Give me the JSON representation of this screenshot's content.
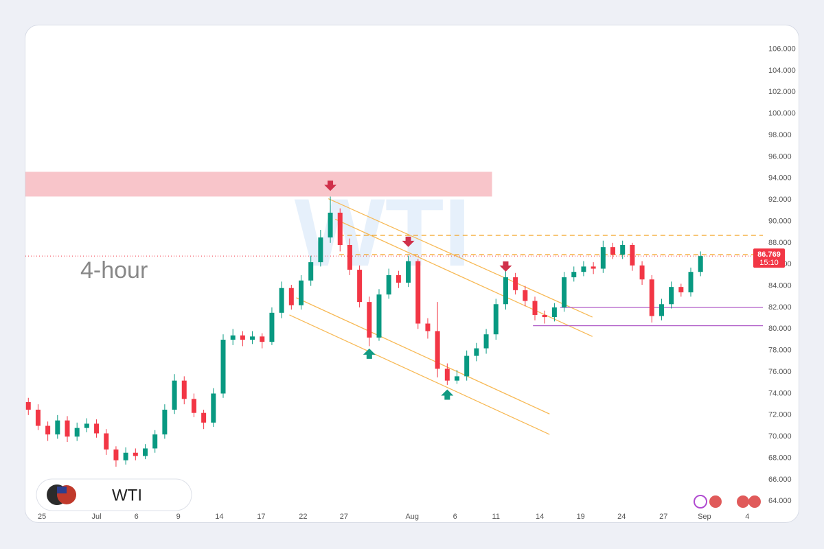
{
  "chart_data": {
    "type": "candlestick",
    "symbol": "WTI",
    "timeframe": "4-hour",
    "countdown": "15:10",
    "up_color": "#089981",
    "down_color": "#f23645",
    "xlim": [
      -0.3,
      75.4
    ],
    "ylim": [
      63,
      108.2
    ],
    "yticks": [
      {
        "value": 64,
        "label": "64.000"
      },
      {
        "value": 66,
        "label": "66.000"
      },
      {
        "value": 68,
        "label": "68.000"
      },
      {
        "value": 70,
        "label": "70.000"
      },
      {
        "value": 72,
        "label": "72.000"
      },
      {
        "value": 74,
        "label": "74.000"
      },
      {
        "value": 76,
        "label": "76.000"
      },
      {
        "value": 78,
        "label": "78.000"
      },
      {
        "value": 80,
        "label": "80.000"
      },
      {
        "value": 82,
        "label": "82.000"
      },
      {
        "value": 84,
        "label": "84.000"
      },
      {
        "value": 86,
        "label": "86.000"
      },
      {
        "value": 88,
        "label": "88.000"
      },
      {
        "value": 90,
        "label": "90.000"
      },
      {
        "value": 92,
        "label": "92.000"
      },
      {
        "value": 94,
        "label": "94.000"
      },
      {
        "value": 96,
        "label": "96.000"
      },
      {
        "value": 98,
        "label": "98.000"
      },
      {
        "value": 100,
        "label": "100.000"
      },
      {
        "value": 102,
        "label": "102.000"
      },
      {
        "value": 104,
        "label": "104.000"
      },
      {
        "value": 106,
        "label": "106.000"
      }
    ],
    "xticks": [
      {
        "value": 1.4,
        "label": "25"
      },
      {
        "value": 7.0,
        "label": "Jul"
      },
      {
        "value": 11.1,
        "label": "6"
      },
      {
        "value": 15.4,
        "label": "9"
      },
      {
        "value": 19.6,
        "label": "14"
      },
      {
        "value": 23.9,
        "label": "17"
      },
      {
        "value": 28.2,
        "label": "22"
      },
      {
        "value": 32.4,
        "label": "27"
      },
      {
        "value": 39.4,
        "label": "Aug"
      },
      {
        "value": 43.8,
        "label": "6"
      },
      {
        "value": 48.0,
        "label": "11"
      },
      {
        "value": 52.5,
        "label": "14"
      },
      {
        "value": 56.7,
        "label": "19"
      },
      {
        "value": 60.9,
        "label": "24"
      },
      {
        "value": 65.2,
        "label": "27"
      },
      {
        "value": 69.4,
        "label": "Sep"
      },
      {
        "value": 73.8,
        "label": "4"
      }
    ],
    "open": [
      73.2,
      72.5,
      71.0,
      70.2,
      71.5,
      70.0,
      70.8,
      71.2,
      70.3,
      68.8,
      67.8,
      68.5,
      68.2,
      68.9,
      70.2,
      72.5,
      75.2,
      73.5,
      72.2,
      71.3,
      74.0,
      79.0,
      79.4,
      79.0,
      79.3,
      78.8,
      81.5,
      83.8,
      82.2,
      84.5,
      86.2,
      88.5,
      90.8,
      87.8,
      85.5,
      82.5,
      79.2,
      83.2,
      85.0,
      84.3,
      86.3,
      80.5,
      79.8,
      76.3,
      75.2,
      75.6,
      77.5,
      78.2,
      79.5,
      82.3,
      84.8,
      83.6,
      82.6,
      81.3,
      81.1,
      82.0,
      84.8,
      85.3,
      85.8,
      85.6,
      87.6,
      86.9,
      87.8,
      85.9,
      84.6,
      81.2,
      82.3,
      83.9,
      83.4,
      85.3
    ],
    "high": [
      73.6,
      73.0,
      71.4,
      72.0,
      71.9,
      71.3,
      71.7,
      71.6,
      70.7,
      69.1,
      69.0,
      68.9,
      69.3,
      70.6,
      73.0,
      75.8,
      75.6,
      74.0,
      72.5,
      74.5,
      79.5,
      80.0,
      79.8,
      79.8,
      79.6,
      82.0,
      84.4,
      84.1,
      85.0,
      86.8,
      89.2,
      92.3,
      91.2,
      88.4,
      85.9,
      83.0,
      83.7,
      85.6,
      85.4,
      86.8,
      86.5,
      81.0,
      82.5,
      76.8,
      76.2,
      78.0,
      78.7,
      80.0,
      82.8,
      85.4,
      85.2,
      84.0,
      83.0,
      81.7,
      82.4,
      85.3,
      85.8,
      86.3,
      86.2,
      88.2,
      88.0,
      88.2,
      88.0,
      86.3,
      85.0,
      82.8,
      84.4,
      84.2,
      85.7,
      87.2
    ],
    "low": [
      72.0,
      70.6,
      69.6,
      69.8,
      69.5,
      69.6,
      70.4,
      69.9,
      68.3,
      67.2,
      67.4,
      67.8,
      67.9,
      68.5,
      69.8,
      72.1,
      73.0,
      71.8,
      70.7,
      70.9,
      73.6,
      78.5,
      78.4,
      78.6,
      78.2,
      78.5,
      81.0,
      81.8,
      81.8,
      84.0,
      85.8,
      88.0,
      87.2,
      85.0,
      82.0,
      78.4,
      78.9,
      82.8,
      83.8,
      83.9,
      80.0,
      79.1,
      75.5,
      74.8,
      74.9,
      75.2,
      77.0,
      77.7,
      79.0,
      81.8,
      83.2,
      82.1,
      80.8,
      80.5,
      80.7,
      81.6,
      84.4,
      84.9,
      85.1,
      85.2,
      86.5,
      86.5,
      85.4,
      84.1,
      80.6,
      80.8,
      81.9,
      83.0,
      83.0,
      84.9
    ],
    "close": [
      72.5,
      71.0,
      70.2,
      71.5,
      70.0,
      70.8,
      71.2,
      70.3,
      68.8,
      67.8,
      68.5,
      68.2,
      68.9,
      70.2,
      72.5,
      75.2,
      73.5,
      72.2,
      71.3,
      74.0,
      79.0,
      79.4,
      79.0,
      79.3,
      78.8,
      81.5,
      83.8,
      82.2,
      84.5,
      86.2,
      88.5,
      90.8,
      87.8,
      85.5,
      82.5,
      79.2,
      83.2,
      85.0,
      84.3,
      86.3,
      80.5,
      79.8,
      76.3,
      75.2,
      75.6,
      77.5,
      78.2,
      79.5,
      82.3,
      84.8,
      83.6,
      82.6,
      81.3,
      81.1,
      82.0,
      84.8,
      85.3,
      85.8,
      85.6,
      87.6,
      86.9,
      87.8,
      85.9,
      84.6,
      81.2,
      82.3,
      83.9,
      83.4,
      85.3,
      86.769
    ],
    "zone": {
      "x_end": 47.6,
      "range": [
        92.3,
        94.6
      ],
      "color": "#f8c5ca"
    },
    "trendlines": {
      "color": "#f7b955",
      "lines": [
        [
          [
            30.8,
            92.1
          ],
          [
            57.9,
            81.1
          ]
        ],
        [
          [
            31.5,
            90.2
          ],
          [
            57.9,
            79.3
          ]
        ],
        [
          [
            27.5,
            82.9
          ],
          [
            53.5,
            72.1
          ]
        ],
        [
          [
            26.8,
            81.3
          ],
          [
            53.5,
            70.2
          ]
        ]
      ]
    },
    "levels": [
      {
        "price": 88.7,
        "x_start": 31.9,
        "color": "#f39c12",
        "style": "dashed"
      },
      {
        "price": 86.9,
        "x_start": 31.9,
        "color": "#f39c12",
        "style": "dashed"
      },
      {
        "price": 82.0,
        "x_start": 54.6,
        "color": "#b05cc8",
        "style": "solid"
      },
      {
        "price": 80.3,
        "x_start": 51.8,
        "color": "#b05cc8",
        "style": "solid"
      }
    ],
    "markers": [
      {
        "index": 31,
        "price": 93.2,
        "dir": "down"
      },
      {
        "index": 39,
        "price": 88.0,
        "dir": "down"
      },
      {
        "index": 49,
        "price": 85.7,
        "dir": "down"
      },
      {
        "index": 35,
        "price": 77.8,
        "dir": "up"
      },
      {
        "index": 43,
        "price": 74.0,
        "dir": "up"
      }
    ]
  }
}
